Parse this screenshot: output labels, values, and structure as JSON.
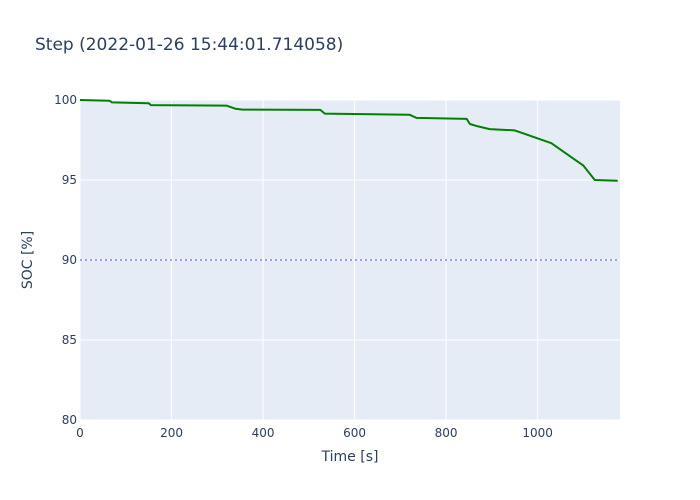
{
  "chart_data": {
    "type": "line",
    "title": "Step  (2022-01-26 15:44:01.714058)",
    "xlabel": "Time [s]",
    "ylabel": "SOC [%]",
    "xlim": [
      0,
      1180
    ],
    "ylim": [
      80,
      100
    ],
    "x_ticks": [
      0,
      200,
      400,
      600,
      800,
      1000
    ],
    "y_ticks": [
      80,
      85,
      90,
      95,
      100
    ],
    "grid": true,
    "colors": {
      "plot_bg": "#e5ecf6",
      "grid": "#ffffff",
      "series": "#008000",
      "reference": "#636efa",
      "text": "#2a3f5f"
    },
    "series": [
      {
        "x": [
          0,
          65,
          70,
          150,
          155,
          320,
          340,
          355,
          525,
          535,
          720,
          735,
          845,
          852,
          870,
          895,
          950,
          970,
          990,
          1030,
          1060,
          1080,
          1100,
          1125,
          1175
        ],
        "y": [
          100,
          99.95,
          99.85,
          99.8,
          99.68,
          99.65,
          99.45,
          99.4,
          99.38,
          99.15,
          99.08,
          98.88,
          98.82,
          98.5,
          98.35,
          98.18,
          98.1,
          97.9,
          97.7,
          97.3,
          96.7,
          96.3,
          95.9,
          95.0,
          94.95
        ]
      }
    ],
    "reference_lines": [
      {
        "y": 90,
        "style": "dotted"
      }
    ]
  }
}
